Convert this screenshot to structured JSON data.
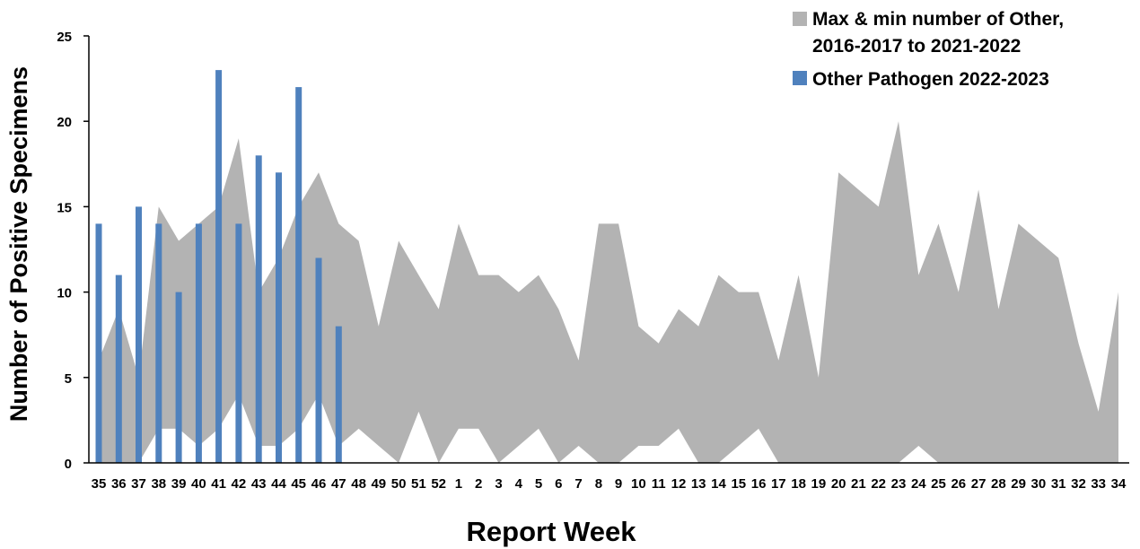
{
  "chart_data": {
    "type": "bar",
    "xlabel": "Report Week",
    "ylabel": "Number of Positive Specimens",
    "ylim": [
      0,
      25
    ],
    "yticks": [
      0,
      5,
      10,
      15,
      20,
      25
    ],
    "grid": false,
    "legend_position": "top-right",
    "categories": [
      "35",
      "36",
      "37",
      "38",
      "39",
      "40",
      "41",
      "42",
      "43",
      "44",
      "45",
      "46",
      "47",
      "48",
      "49",
      "50",
      "51",
      "52",
      "1",
      "2",
      "3",
      "4",
      "5",
      "6",
      "7",
      "8",
      "9",
      "10",
      "11",
      "12",
      "13",
      "14",
      "15",
      "16",
      "17",
      "18",
      "19",
      "20",
      "21",
      "22",
      "23",
      "24",
      "25",
      "26",
      "27",
      "28",
      "29",
      "30",
      "31",
      "32",
      "33",
      "34"
    ],
    "range_series": {
      "name": "Max & min number of Other, 2016-2017 to 2021-2022",
      "legend_lines": [
        "Max & min number of Other,",
        "2016-2017 to 2021-2022"
      ],
      "type": "area-range",
      "color": "#b3b3b3",
      "max": [
        6,
        9,
        5,
        15,
        13,
        14,
        15,
        19,
        10,
        12,
        15,
        17,
        14,
        13,
        8,
        13,
        11,
        9,
        14,
        11,
        11,
        10,
        11,
        9,
        6,
        14,
        14,
        8,
        7,
        9,
        8,
        11,
        10,
        10,
        6,
        11,
        5,
        17,
        16,
        15,
        20,
        11,
        14,
        10,
        16,
        9,
        14,
        13,
        12,
        7,
        3,
        10
      ],
      "min": [
        0,
        0,
        0,
        2,
        2,
        1,
        2,
        4,
        1,
        1,
        2,
        4,
        1,
        2,
        1,
        0,
        3,
        0,
        2,
        2,
        0,
        1,
        2,
        0,
        1,
        0,
        0,
        1,
        1,
        2,
        0,
        0,
        1,
        2,
        0,
        0,
        0,
        0,
        0,
        0,
        0,
        1,
        0,
        0,
        0,
        0,
        0,
        0,
        0,
        0,
        0,
        0
      ]
    },
    "bar_series": {
      "name": "Other Pathogen 2022-2023",
      "type": "bar",
      "color": "#4f81bd",
      "values": [
        14,
        11,
        15,
        14,
        10,
        14,
        23,
        14,
        18,
        17,
        22,
        12,
        8,
        null,
        null,
        null,
        null,
        null,
        null,
        null,
        null,
        null,
        null,
        null,
        null,
        null,
        null,
        null,
        null,
        null,
        null,
        null,
        null,
        null,
        null,
        null,
        null,
        null,
        null,
        null,
        null,
        null,
        null,
        null,
        null,
        null,
        null,
        null,
        null,
        null,
        null,
        null
      ]
    }
  }
}
